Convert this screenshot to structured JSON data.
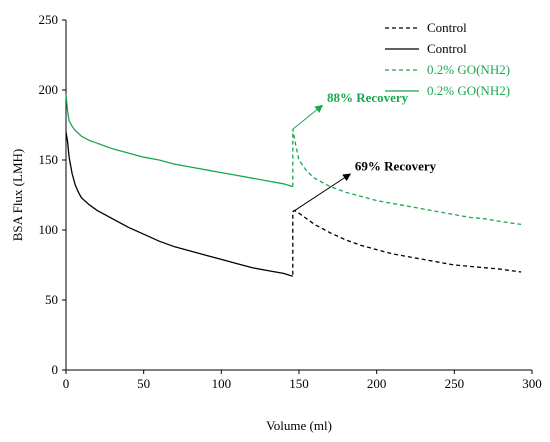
{
  "chart_data": {
    "type": "line",
    "xlabel": "Volume (ml)",
    "ylabel": "BSA Flux (LMH)",
    "xlim": [
      0,
      300
    ],
    "ylim": [
      0,
      250
    ],
    "xticks": [
      "0",
      "50",
      "100",
      "150",
      "200",
      "250",
      "300"
    ],
    "yticks": [
      "0",
      "50",
      "100",
      "150",
      "200",
      "250"
    ],
    "grid": false,
    "legend_position": "top-right",
    "colors": {
      "control": "#000000",
      "go": "#1aa84f"
    },
    "series": [
      {
        "name": "Control",
        "style": "dashed",
        "color": "#000000",
        "x": [
          146,
          146,
          147,
          150,
          155,
          160,
          170,
          180,
          190,
          200,
          210,
          220,
          230,
          240,
          250,
          260,
          270,
          280,
          293
        ],
        "y": [
          68,
          113,
          114,
          112,
          108,
          104,
          98,
          93,
          89,
          86,
          83,
          81,
          79,
          77,
          75,
          74,
          73,
          72,
          70
        ]
      },
      {
        "name": "Control",
        "style": "solid",
        "color": "#000000",
        "x": [
          0,
          1,
          2,
          4,
          6,
          8,
          10,
          15,
          20,
          25,
          30,
          40,
          50,
          60,
          70,
          80,
          90,
          100,
          110,
          120,
          130,
          140,
          146
        ],
        "y": [
          170,
          163,
          152,
          140,
          132,
          127,
          123,
          118,
          114,
          111,
          108,
          102,
          97,
          92,
          88,
          85,
          82,
          79,
          76,
          73,
          71,
          69,
          67
        ]
      },
      {
        "name": "0.2% GO(NH2)",
        "style": "dashed",
        "color": "#1aa84f",
        "x": [
          146,
          146,
          148,
          150,
          155,
          160,
          170,
          180,
          190,
          200,
          210,
          220,
          230,
          240,
          250,
          260,
          270,
          280,
          293
        ],
        "y": [
          131,
          172,
          160,
          150,
          142,
          137,
          131,
          127,
          124,
          121,
          119,
          117,
          115,
          113,
          111,
          109,
          108,
          106,
          104
        ]
      },
      {
        "name": "0.2% GO(NH2)",
        "style": "solid",
        "color": "#1aa84f",
        "x": [
          0,
          1,
          2,
          4,
          6,
          8,
          10,
          15,
          20,
          25,
          30,
          40,
          50,
          60,
          70,
          80,
          90,
          100,
          110,
          120,
          130,
          140,
          146
        ],
        "y": [
          197,
          185,
          178,
          174,
          171,
          169,
          167,
          164,
          162,
          160,
          158,
          155,
          152,
          150,
          147,
          145,
          143,
          141,
          139,
          137,
          135,
          133,
          131
        ]
      }
    ],
    "annotations": [
      {
        "text": "88% Recovery",
        "color": "#1aa84f",
        "arrow_from": [
          146,
          172
        ],
        "arrow_to": [
          165,
          189
        ],
        "label_at": [
          168,
          190
        ]
      },
      {
        "text": "69% Recovery",
        "color": "#000000",
        "arrow_from": [
          146,
          113
        ],
        "arrow_to": [
          183,
          140
        ],
        "label_at": [
          186,
          141
        ]
      }
    ]
  }
}
